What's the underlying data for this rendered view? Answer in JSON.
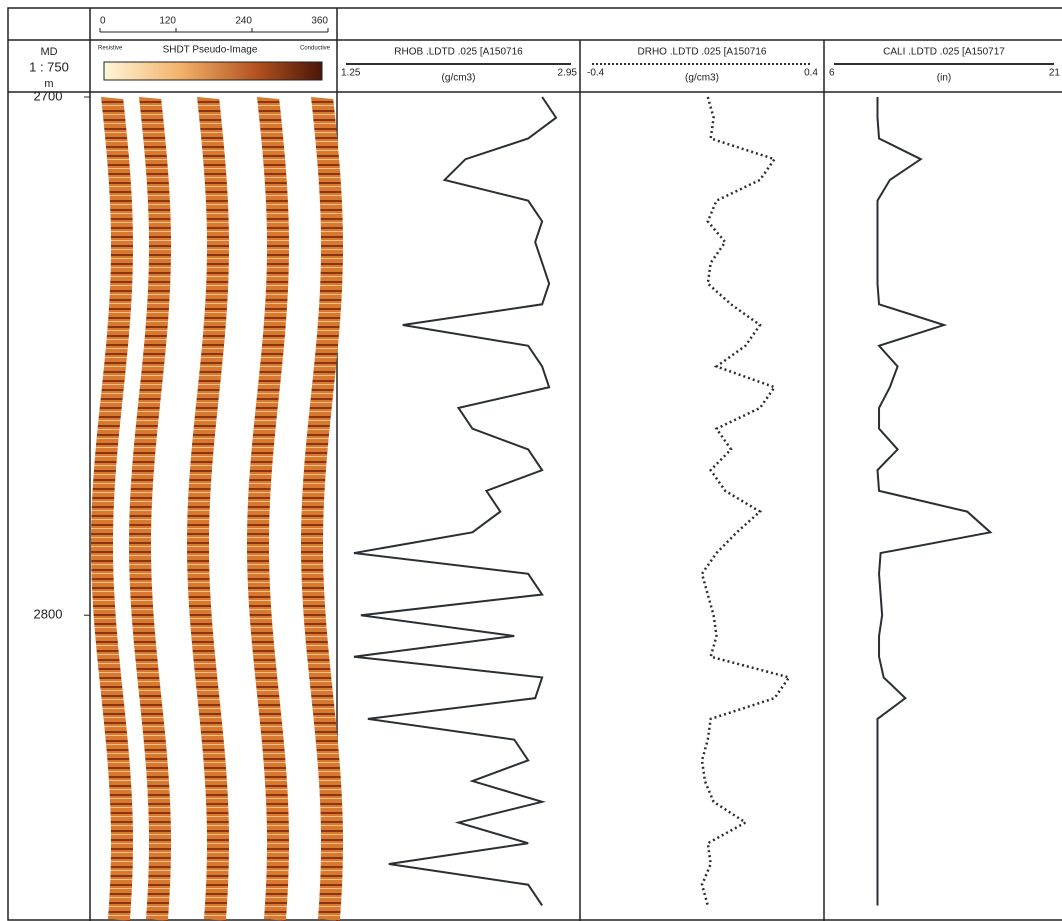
{
  "header": {
    "md_label": "MD",
    "scale": "1 : 750",
    "unit": "m"
  },
  "image_track": {
    "azimuth_ticks": [
      0,
      120,
      240,
      360
    ],
    "left_label": "Resistive",
    "title": "SHDT Pseudo-Image",
    "right_label": "Conductive",
    "xlim": [
      0,
      360
    ]
  },
  "depth": {
    "ylim": [
      2700,
      2859
    ],
    "ticks": [
      2700,
      2800
    ]
  },
  "depths": [
    2700,
    2704,
    2708,
    2712,
    2716,
    2720,
    2724,
    2728,
    2732,
    2736,
    2740,
    2744,
    2748,
    2752,
    2756,
    2760,
    2764,
    2768,
    2772,
    2776,
    2780,
    2784,
    2788,
    2792,
    2796,
    2800,
    2804,
    2808,
    2812,
    2816,
    2820,
    2824,
    2828,
    2832,
    2836,
    2840,
    2844,
    2848,
    2852,
    2856
  ],
  "tracks": [
    {
      "name": "RHOB .LDTD .025 [A150716",
      "unit": "(g/cm3)",
      "xlim": [
        1.25,
        2.95
      ],
      "color": "#2a2f33",
      "dashed": false,
      "values": [
        2.7,
        2.8,
        2.6,
        2.15,
        2.0,
        2.6,
        2.7,
        2.65,
        2.7,
        2.75,
        2.7,
        1.7,
        2.6,
        2.7,
        2.75,
        2.1,
        2.2,
        2.6,
        2.7,
        2.3,
        2.4,
        2.2,
        1.35,
        2.6,
        2.7,
        1.4,
        2.5,
        1.35,
        2.7,
        2.65,
        1.45,
        2.5,
        2.6,
        2.2,
        2.7,
        2.1,
        2.6,
        1.6,
        2.6,
        2.7
      ]
    },
    {
      "name": "DRHO .LDTD .025 [A150716",
      "unit": "(g/cm3)",
      "xlim": [
        -0.4,
        0.4
      ],
      "color": "#2a2f33",
      "dashed": true,
      "values": [
        0.02,
        0.04,
        0.03,
        0.25,
        0.2,
        0.05,
        0.02,
        0.08,
        0.03,
        0.02,
        0.1,
        0.2,
        0.15,
        0.05,
        0.25,
        0.2,
        0.05,
        0.1,
        0.03,
        0.08,
        0.2,
        0.12,
        0.05,
        0.0,
        0.02,
        0.04,
        0.05,
        0.03,
        0.3,
        0.25,
        0.03,
        0.02,
        0.0,
        0.01,
        0.04,
        0.15,
        0.02,
        0.03,
        0.0,
        0.02
      ]
    },
    {
      "name": "CALI .LDTD .025 [A150717",
      "unit": "(in)",
      "xlim": [
        6,
        21
      ],
      "color": "#2a2f33",
      "dashed": false,
      "values": [
        9.2,
        9.2,
        9.3,
        12,
        10,
        9.2,
        9.2,
        9.2,
        9.2,
        9.2,
        9.3,
        13.5,
        9.3,
        10.5,
        10,
        9.3,
        9.3,
        10.5,
        9.2,
        9.3,
        15,
        16.5,
        9.4,
        9.3,
        9.4,
        9.5,
        9.3,
        9.3,
        9.6,
        11,
        9.2,
        9.2,
        9.2,
        9.2,
        9.2,
        9.2,
        9.2,
        9.2,
        9.2,
        9.2
      ]
    }
  ]
}
